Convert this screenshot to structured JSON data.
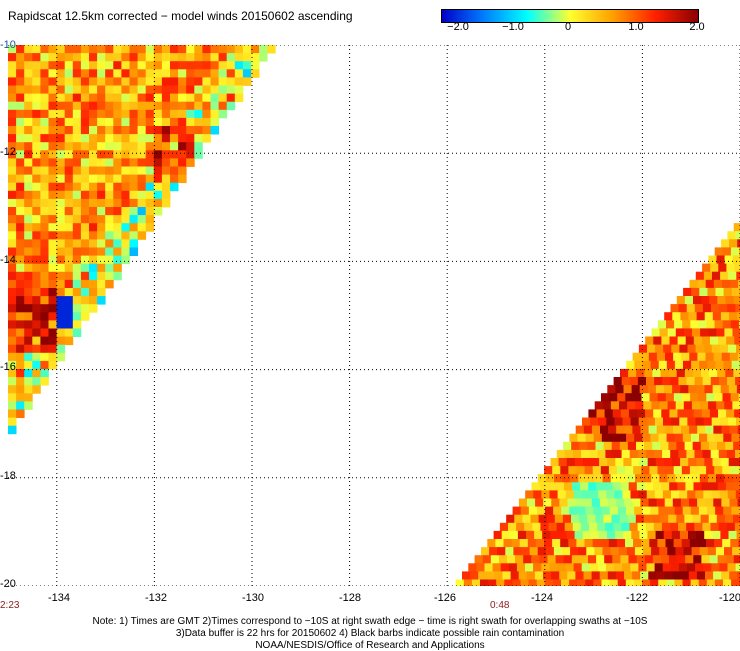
{
  "title": "Rapidscat 12.5km corrected − model winds 20150602 ascending",
  "colorbar": {
    "labels": [
      "−2.0",
      "−1.0",
      "0",
      "1.0",
      "2.0"
    ],
    "stops": [
      "#0000c8",
      "#0080ff",
      "#00ffff",
      "#ffff30",
      "#ffa000",
      "#ff2000",
      "#8b0000"
    ]
  },
  "map": {
    "lon_range": [
      -135.0,
      -120.0
    ],
    "lat_range": [
      -20.0,
      -10.0
    ],
    "grid": true,
    "lat_ticks": [
      "-10",
      "-12",
      "-14",
      "-16",
      "-18",
      "-20"
    ],
    "lon_ticks": [
      "-134",
      "-132",
      "-130",
      "-128",
      "-126",
      "-124",
      "-122",
      "-120"
    ]
  },
  "swath_times": [
    "2:23",
    "0:48"
  ],
  "notes": [
    "Note: 1) Times are GMT 2)Times correspond to −10S at right swath edge − time is right swath for overlapping swaths at −10S",
    "3)Data buffer is 22 hrs for 20150602 4) Black barbs indicate possible rain contamination",
    "NOAA/NESDIS/Office of Research and Applications"
  ]
}
